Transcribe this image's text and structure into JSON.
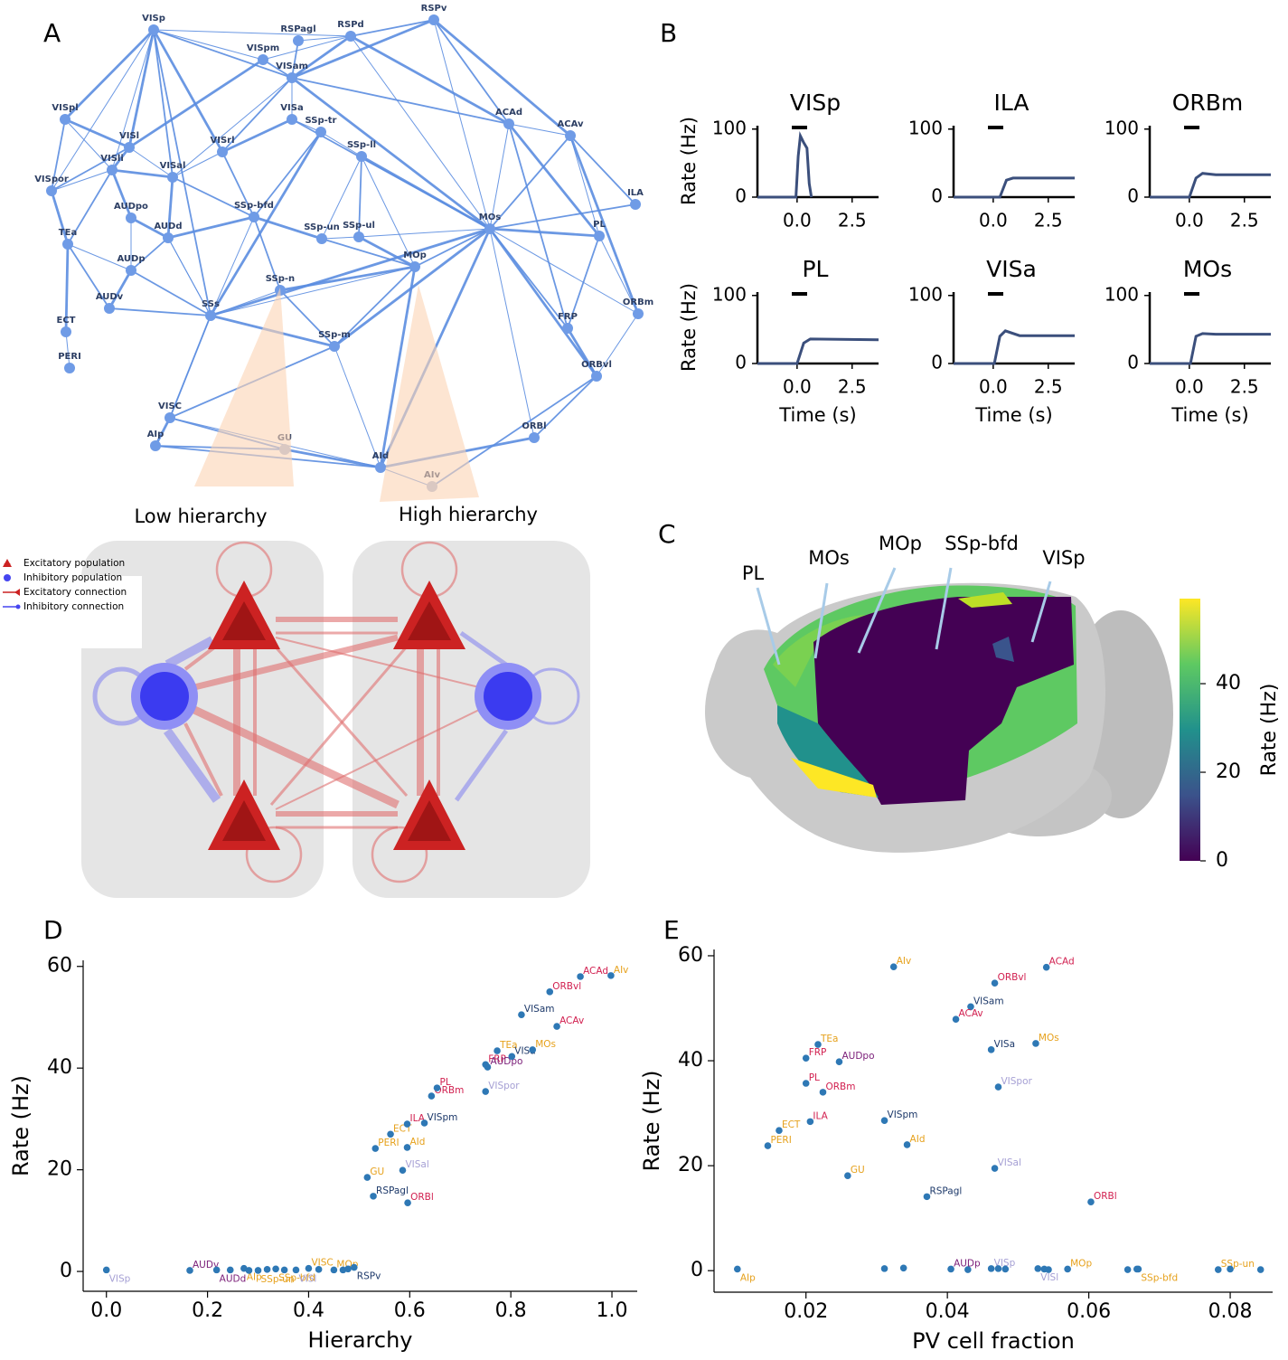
{
  "panel_labels": [
    "A",
    "B",
    "C",
    "D",
    "E"
  ],
  "network": {
    "nodes": [
      "VISp",
      "RSPagl",
      "RSPd",
      "RSPv",
      "VISpm",
      "VISam",
      "VISpl",
      "VISa",
      "SSp-tr",
      "ACAd",
      "ACAv",
      "VISl",
      "VISrl",
      "SSp-ll",
      "VISli",
      "VISal",
      "VISpor",
      "ILA",
      "MOs",
      "SSp-bfd",
      "AUDpo",
      "AUDd",
      "SSp-un",
      "SSp-ul",
      "PL",
      "TEa",
      "AUDp",
      "MOp",
      "SSp-n",
      "AUDv",
      "ORBm",
      "SSs",
      "ECT",
      "FRP",
      "SSp-m",
      "PERI",
      "ORBvl",
      "VISC",
      "ORBl",
      "AIp",
      "GU",
      "AId",
      "AIv"
    ],
    "annotations": [
      "Low hierarchy",
      "High hierarchy"
    ]
  },
  "circuit": {
    "legend": [
      "Excitatory population",
      "Inhibitory population",
      "Excitatory connection",
      "Inhibitory connection"
    ]
  },
  "brain": {
    "labels": [
      "PL",
      "MOs",
      "MOp",
      "SSp-bfd",
      "VISp"
    ],
    "colorbar": {
      "label": "Rate (Hz)",
      "lim": [
        0,
        59.2
      ],
      "ticks": [
        0,
        20,
        40
      ]
    }
  },
  "chart_data": [
    {
      "type": "line",
      "title": "VISp",
      "ylabel": "Rate (Hz)",
      "x": [
        -1.8,
        -0.05,
        0.05,
        0.15,
        0.3,
        0.45,
        0.55,
        0.65
      ],
      "values": [
        0,
        0,
        60,
        90,
        80,
        72,
        20,
        0
      ],
      "color": "#3b4f7c",
      "xlim": [
        -1.8,
        3.7
      ],
      "ylim": [
        0,
        105
      ],
      "xticks": [
        {
          "value": 0,
          "label": "0.0"
        },
        2.5
      ],
      "yticks": [
        0,
        100
      ]
    },
    {
      "type": "line",
      "title": "ILA",
      "x": [
        -1.8,
        0.3,
        0.6,
        0.9,
        3.7
      ],
      "values": [
        0,
        0,
        25,
        28,
        28
      ],
      "color": "#3b4f7c",
      "xlim": [
        -1.8,
        3.7
      ],
      "ylim": [
        0,
        105
      ],
      "xticks": [
        {
          "value": 0,
          "label": "0.0"
        },
        2.5
      ],
      "yticks": [
        0,
        100
      ]
    },
    {
      "type": "line",
      "title": "ORBm",
      "x": [
        -1.8,
        0,
        0.3,
        0.6,
        1.2,
        3.7
      ],
      "values": [
        0,
        0,
        28,
        35,
        33,
        33
      ],
      "color": "#3b4f7c",
      "xlim": [
        -1.8,
        3.7
      ],
      "ylim": [
        0,
        105
      ],
      "xticks": [
        {
          "value": 0,
          "label": "0.0"
        },
        2.5
      ],
      "yticks": [
        0,
        100
      ]
    },
    {
      "type": "line",
      "title": "PL",
      "ylabel": "Rate (Hz)",
      "xlabel": "Time (s)",
      "x": [
        -1.8,
        0,
        0.3,
        0.6,
        3.7
      ],
      "values": [
        0,
        0,
        30,
        36,
        35
      ],
      "color": "#3b4f7c",
      "xlim": [
        -1.8,
        3.7
      ],
      "ylim": [
        0,
        105
      ],
      "xticks": [
        {
          "value": 0,
          "label": "0.0"
        },
        2.5
      ],
      "yticks": [
        0,
        100
      ]
    },
    {
      "type": "line",
      "title": "VISa",
      "xlabel": "Time (s)",
      "x": [
        -1.8,
        0.05,
        0.3,
        0.55,
        1.2,
        3.7
      ],
      "values": [
        0,
        0,
        40,
        48,
        41,
        41
      ],
      "color": "#3b4f7c",
      "xlim": [
        -1.8,
        3.7
      ],
      "ylim": [
        0,
        105
      ],
      "xticks": [
        {
          "value": 0,
          "label": "0.0"
        },
        2.5
      ],
      "yticks": [
        0,
        100
      ]
    },
    {
      "type": "line",
      "title": "MOs",
      "xlabel": "Time (s)",
      "x": [
        -1.8,
        0.05,
        0.3,
        0.6,
        1.2,
        3.7
      ],
      "values": [
        0,
        0,
        40,
        44,
        43,
        43
      ],
      "color": "#3b4f7c",
      "xlim": [
        -1.8,
        3.7
      ],
      "ylim": [
        0,
        105
      ],
      "xticks": [
        {
          "value": 0,
          "label": "0.0"
        },
        2.5
      ],
      "yticks": [
        0,
        100
      ]
    },
    {
      "type": "scatter",
      "xlabel": "Hierarchy",
      "ylabel": "Rate (Hz)",
      "color": "#2e78b5",
      "point_labels": [
        "VISp",
        "AUDv",
        "AUDd",
        null,
        "AIp",
        null,
        "SSp-un",
        null,
        "SSp-bfd",
        null,
        "VISl",
        "VISC",
        null,
        "MOp",
        null,
        null,
        "RSPv",
        "RSPagl",
        "ORBl",
        "GU",
        "VISal",
        "PERI",
        "AId",
        "ECT",
        "ILA",
        "VISpm",
        "ORBm",
        "PL",
        "VISpor",
        "FRP",
        "AUDpo",
        "TEa",
        "VISa",
        "MOs",
        "ACAv",
        "VISam",
        "ORBvl",
        "ACAd",
        "AIv"
      ],
      "label_colors": [
        "#a59fd4",
        "#7a1d78",
        "#7a1d78",
        null,
        "#e6a11c",
        null,
        "#e6a11c",
        null,
        "#e6a11c",
        null,
        "#a59fd4",
        "#e6a11c",
        null,
        "#e6a11c",
        null,
        null,
        "#1c3869",
        "#1c3869",
        "#d11f4f",
        "#e6a11c",
        "#a59fd4",
        "#e6a11c",
        "#e6a11c",
        "#e6a11c",
        "#d11f4f",
        "#1c3869",
        "#d11f4f",
        "#d11f4f",
        "#a59fd4",
        "#d11f4f",
        "#7a1d78",
        "#e6a11c",
        "#1c3869",
        "#e6a11c",
        "#d11f4f",
        "#1c3869",
        "#d11f4f",
        "#d11f4f",
        "#e6a11c"
      ],
      "x": [
        0.0,
        0.165,
        0.218,
        0.245,
        0.272,
        0.282,
        0.3,
        0.318,
        0.335,
        0.352,
        0.375,
        0.4,
        0.42,
        0.45,
        0.468,
        0.478,
        0.49,
        0.528,
        0.596,
        0.516,
        0.586,
        0.532,
        0.595,
        0.562,
        0.595,
        0.629,
        0.643,
        0.654,
        0.75,
        0.75,
        0.754,
        0.773,
        0.802,
        0.843,
        0.891,
        0.821,
        0.877,
        0.9375,
        0.998
      ],
      "values": [
        0.3,
        0.2,
        0.3,
        0.3,
        0.6,
        0.2,
        0.2,
        0.4,
        0.5,
        0.3,
        0.3,
        0.6,
        0.4,
        0.3,
        0.3,
        0.5,
        0.8,
        14.8,
        13.5,
        18.5,
        19.9,
        24.2,
        24.4,
        27.0,
        29.0,
        29.2,
        34.5,
        36.1,
        35.4,
        40.7,
        40.2,
        43.4,
        42.3,
        43.6,
        48.2,
        50.5,
        55.0,
        58.0,
        58.2
      ],
      "xlim": [
        -0.046,
        1.05
      ],
      "ylim": [
        -3.9,
        61.2
      ],
      "xticks": [
        {
          "value": 0,
          "label": "0.0"
        },
        0.2,
        0.4,
        0.6,
        0.8,
        {
          "value": 1,
          "label": "1.0"
        }
      ],
      "yticks": [
        0,
        20,
        40,
        60
      ]
    },
    {
      "type": "scatter",
      "xlabel": "PV cell fraction",
      "ylabel": "Rate (Hz)",
      "color": "#2e78b5",
      "point_labels": [
        "AIp",
        "AIv",
        "ACAd",
        "ORBvl",
        "VISam",
        "ACAv",
        "TEa",
        "FRP",
        "AUDpo",
        "VISa",
        "MOs",
        "VISpor",
        "PL",
        "ORBm",
        "ILA",
        "VISpm",
        "ECT",
        "PERI",
        "AId",
        "GU",
        "VISal",
        "RSPagl",
        "ORBl",
        null,
        null,
        "AUDp",
        null,
        "VISp",
        null,
        null,
        "VISl",
        null,
        null,
        "MOp",
        null,
        null,
        "SSp-bfd",
        "SSp-un",
        null,
        null
      ],
      "label_colors": [
        "#e6a11c",
        "#e6a11c",
        "#d11f4f",
        "#d11f4f",
        "#1c3869",
        "#d11f4f",
        "#e6a11c",
        "#d11f4f",
        "#7a1d78",
        "#1c3869",
        "#e6a11c",
        "#a59fd4",
        "#d11f4f",
        "#d11f4f",
        "#d11f4f",
        "#1c3869",
        "#e6a11c",
        "#e6a11c",
        "#e6a11c",
        "#e6a11c",
        "#a59fd4",
        "#1c3869",
        "#d11f4f",
        null,
        null,
        "#7a1d78",
        null,
        "#a59fd4",
        null,
        null,
        "#a59fd4",
        null,
        null,
        "#e6a11c",
        null,
        null,
        "#e6a11c",
        "#e6a11c",
        null,
        null
      ],
      "x": [
        0.0103,
        0.0324,
        0.054,
        0.0467,
        0.0433,
        0.0412,
        0.0217,
        0.02,
        0.0247,
        0.0462,
        0.0525,
        0.0472,
        0.02,
        0.0224,
        0.0206,
        0.0311,
        0.0162,
        0.0146,
        0.0343,
        0.0259,
        0.0467,
        0.0371,
        0.0603,
        0.0311,
        0.0338,
        0.0405,
        0.0429,
        0.0462,
        0.0472,
        0.0482,
        0.0528,
        0.0537,
        0.0543,
        0.057,
        0.0655,
        0.0668,
        0.067,
        0.0783,
        0.08,
        0.0843
      ],
      "values": [
        0.3,
        57.9,
        57.8,
        54.8,
        50.3,
        47.9,
        43.1,
        40.5,
        39.8,
        42.1,
        43.3,
        35.0,
        35.7,
        34.0,
        28.4,
        28.6,
        26.7,
        23.8,
        24.0,
        18.1,
        19.5,
        14.1,
        13.1,
        0.4,
        0.5,
        0.3,
        0.2,
        0.4,
        0.4,
        0.3,
        0.4,
        0.3,
        0.2,
        0.3,
        0.2,
        0.3,
        0.3,
        0.2,
        0.3,
        0.2
      ],
      "xlim": [
        0.007,
        0.086
      ],
      "ylim": [
        -4.1,
        61.2
      ],
      "xticks": [
        0.02,
        0.04,
        0.06,
        0.08
      ],
      "yticks": [
        0,
        20,
        40,
        60
      ]
    }
  ]
}
